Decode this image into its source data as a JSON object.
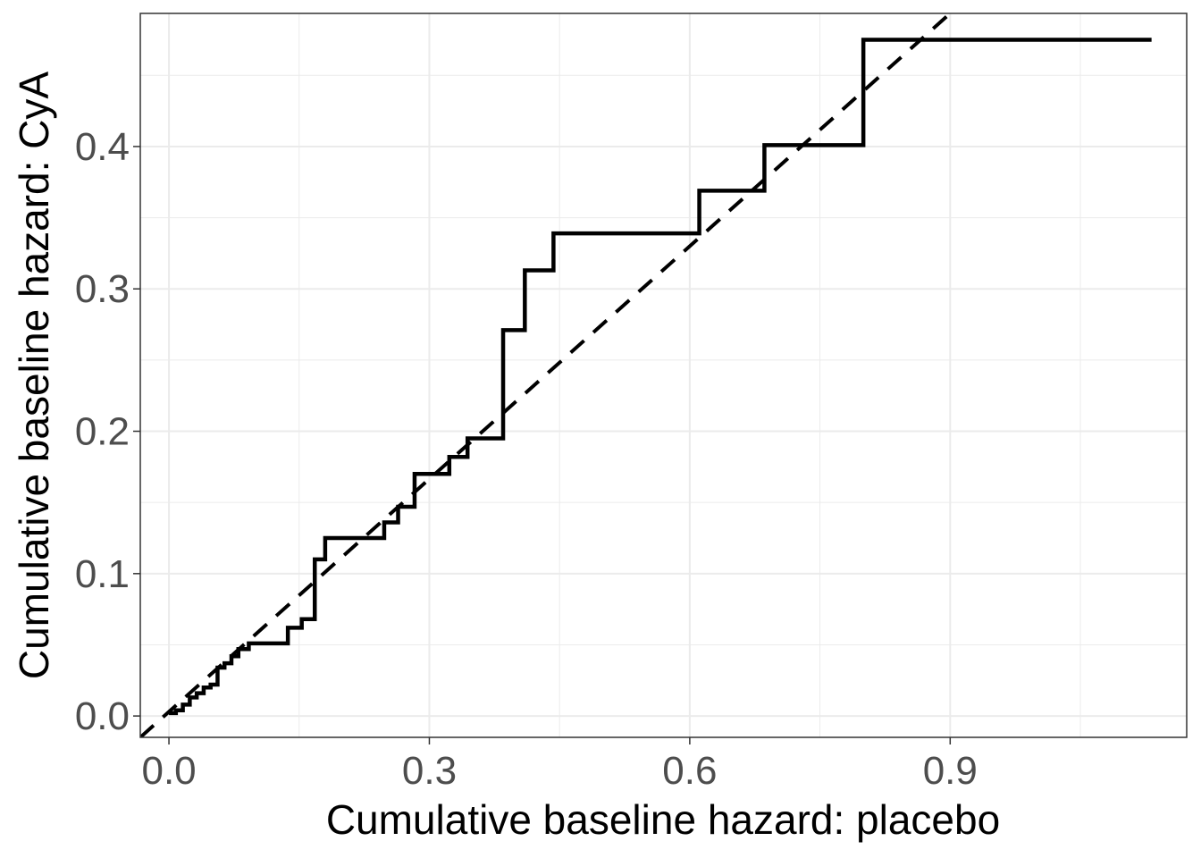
{
  "chart_data": {
    "type": "line",
    "title": "",
    "xlabel": "Cumulative baseline hazard: placebo",
    "ylabel": "Cumulative baseline hazard: CyA",
    "xlim": [
      -0.033,
      1.1725
    ],
    "ylim": [
      -0.015,
      0.4935
    ],
    "x_ticks": [
      0.0,
      0.3,
      0.6,
      0.9
    ],
    "x_tick_labels": [
      "0.0",
      "0.3",
      "0.6",
      "0.9"
    ],
    "y_ticks": [
      0.0,
      0.1,
      0.2,
      0.3,
      0.4
    ],
    "y_tick_labels": [
      "0.0",
      "0.1",
      "0.2",
      "0.3",
      "0.4"
    ],
    "grid": true,
    "colors": {
      "line": "#000000",
      "grid": "#ebebeb",
      "panel_border": "#333333",
      "background": "#ffffff"
    },
    "series": [
      {
        "style": "step",
        "x": [
          0.0,
          0.008,
          0.016,
          0.024,
          0.032,
          0.04,
          0.048,
          0.056,
          0.064,
          0.072,
          0.08,
          0.092,
          0.137,
          0.145,
          0.153,
          0.168,
          0.18,
          0.248,
          0.264,
          0.283,
          0.323,
          0.33,
          0.344,
          0.385,
          0.41,
          0.443,
          0.611,
          0.686,
          0.8,
          1.132
        ],
        "y": [
          0.002,
          0.004,
          0.008,
          0.013,
          0.016,
          0.02,
          0.022,
          0.034,
          0.037,
          0.042,
          0.047,
          0.051,
          0.062,
          0.062,
          0.068,
          0.11,
          0.125,
          0.136,
          0.147,
          0.17,
          0.182,
          0.182,
          0.195,
          0.271,
          0.313,
          0.339,
          0.369,
          0.401,
          0.475,
          0.475
        ]
      },
      {
        "style": "dashed",
        "x": [
          -0.033,
          0.9
        ],
        "y": [
          -0.015,
          0.4935
        ]
      }
    ]
  }
}
